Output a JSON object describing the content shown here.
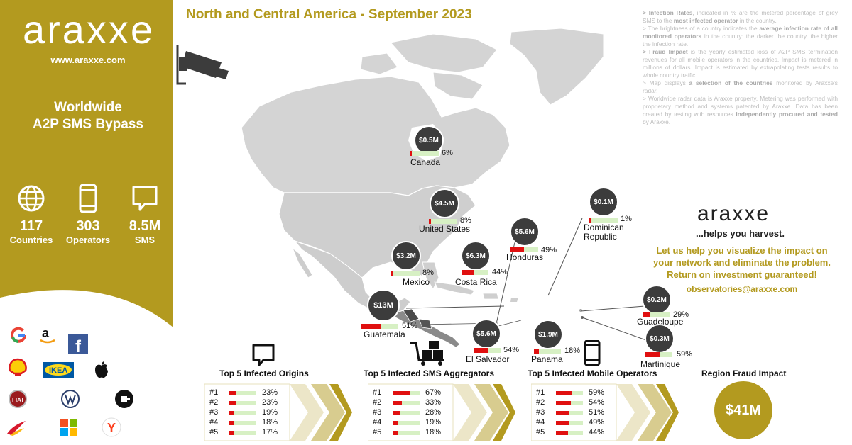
{
  "sidebar": {
    "logo": "araxxe",
    "website": "www.araxxe.com",
    "tagline_line1": "Worldwide",
    "tagline_line2": "A2P SMS Bypass",
    "stats": [
      {
        "icon": "globe-icon",
        "value": "117",
        "label": "Countries"
      },
      {
        "icon": "phone-icon",
        "value": "303",
        "label": "Operators"
      },
      {
        "icon": "message-icon",
        "value": "8.5M",
        "label": "SMS"
      }
    ],
    "brands": [
      "google-logo",
      "amazon-logo",
      "facebook-logo",
      "shell-logo",
      "ikea-logo",
      "apple-logo",
      "fiat-logo",
      "volkswagen-logo",
      "uber-logo",
      "iberia-logo",
      "microsoft-logo",
      "yandex-logo"
    ]
  },
  "title": "North and Central America - September 2023",
  "notes": [
    {
      "bold": "> Infection Rates",
      "text": ", indicated in % are the metered percentage of grey SMS to the ",
      "bold2": "most infected operator",
      "text2": " in the country."
    },
    {
      "bold": "",
      "text": "> The brightness of a country indicates the ",
      "bold2": "average infection rate of all monitored operators",
      "text2": " in the country: the darker the country, the higher the infection rate."
    },
    {
      "bold": "> Fraud Impact",
      "text": " is the yearly estimated loss of A2P SMS termination revenues for all mobile operators in the countries. Impact is metered in millions of dollars. Impact is estimated by extrapolating tests results to whole country traffic.",
      "bold2": "",
      "text2": ""
    },
    {
      "bold": "",
      "text": "> Map displays ",
      "bold2": "a selection of the countries",
      "text2": " monitored by Araxxe's radar."
    },
    {
      "bold": "",
      "text": "> Worldwide radar data is Araxxe property. Metering was performed with proprietary method and systems patented by Araxxe. Data has been created by testing with resources ",
      "bold2": "independently procured and tested",
      "text2": " by Araxxe."
    }
  ],
  "countries": [
    {
      "name": "Canada",
      "impact": "$0.5M",
      "rate": "6%",
      "rate_value": 6
    },
    {
      "name": "United States",
      "impact": "$4.5M",
      "rate": "8%",
      "rate_value": 8
    },
    {
      "name": "Mexico",
      "impact": "$3.2M",
      "rate": "8%",
      "rate_value": 8
    },
    {
      "name": "Costa Rica",
      "impact": "$6.3M",
      "rate": "44%",
      "rate_value": 44
    },
    {
      "name": "Honduras",
      "impact": "$5.6M",
      "rate": "49%",
      "rate_value": 49
    },
    {
      "name": "Dominican Republic",
      "name_line1": "Dominican",
      "name_line2": "Republic",
      "impact": "$0.1M",
      "rate": "1%",
      "rate_value": 1
    },
    {
      "name": "Guatemala",
      "impact": "$13M",
      "rate": "51%",
      "rate_value": 51
    },
    {
      "name": "El Salvador",
      "impact": "$5.6M",
      "rate": "54%",
      "rate_value": 54
    },
    {
      "name": "Panama",
      "impact": "$1.9M",
      "rate": "18%",
      "rate_value": 18
    },
    {
      "name": "Guadeloupe",
      "impact": "$0.2M",
      "rate": "29%",
      "rate_value": 29
    },
    {
      "name": "Martinique",
      "impact": "$0.3M",
      "rate": "59%",
      "rate_value": 59
    }
  ],
  "promo": {
    "logo": "araxxe",
    "tagline": "...helps you harvest.",
    "line1": "Let us help you visualize the impact on",
    "line2": "your network and eliminate the problem.",
    "line3": "Return on investment guaranteed!",
    "email": "observatories@araxxe.com"
  },
  "panels": [
    {
      "title": "Top 5 Infected Origins",
      "icon": "message-icon",
      "rows": [
        {
          "rank": "#1",
          "value": "23%",
          "v": 23
        },
        {
          "rank": "#2",
          "value": "23%",
          "v": 23
        },
        {
          "rank": "#3",
          "value": "19%",
          "v": 19
        },
        {
          "rank": "#4",
          "value": "18%",
          "v": 18
        },
        {
          "rank": "#5",
          "value": "17%",
          "v": 17
        }
      ]
    },
    {
      "title": "Top 5 Infected SMS Aggregators",
      "icon": "cart-icon",
      "rows": [
        {
          "rank": "#1",
          "value": "67%",
          "v": 67
        },
        {
          "rank": "#2",
          "value": "33%",
          "v": 33
        },
        {
          "rank": "#3",
          "value": "28%",
          "v": 28
        },
        {
          "rank": "#4",
          "value": "19%",
          "v": 19
        },
        {
          "rank": "#5",
          "value": "18%",
          "v": 18
        }
      ]
    },
    {
      "title": "Top 5 Infected Mobile Operators",
      "icon": "phone-icon",
      "rows": [
        {
          "rank": "#1",
          "value": "59%",
          "v": 59
        },
        {
          "rank": "#2",
          "value": "54%",
          "v": 54
        },
        {
          "rank": "#3",
          "value": "51%",
          "v": 51
        },
        {
          "rank": "#4",
          "value": "49%",
          "v": 49
        },
        {
          "rank": "#5",
          "value": "44%",
          "v": 44
        }
      ]
    }
  ],
  "region": {
    "title": "Region Fraud Impact",
    "value": "$41M"
  },
  "colors": {
    "gold": "#b39a1f",
    "bubble": "#3c3c3c",
    "rate_fill": "#e01010",
    "rate_track": "#d7f0c4"
  }
}
